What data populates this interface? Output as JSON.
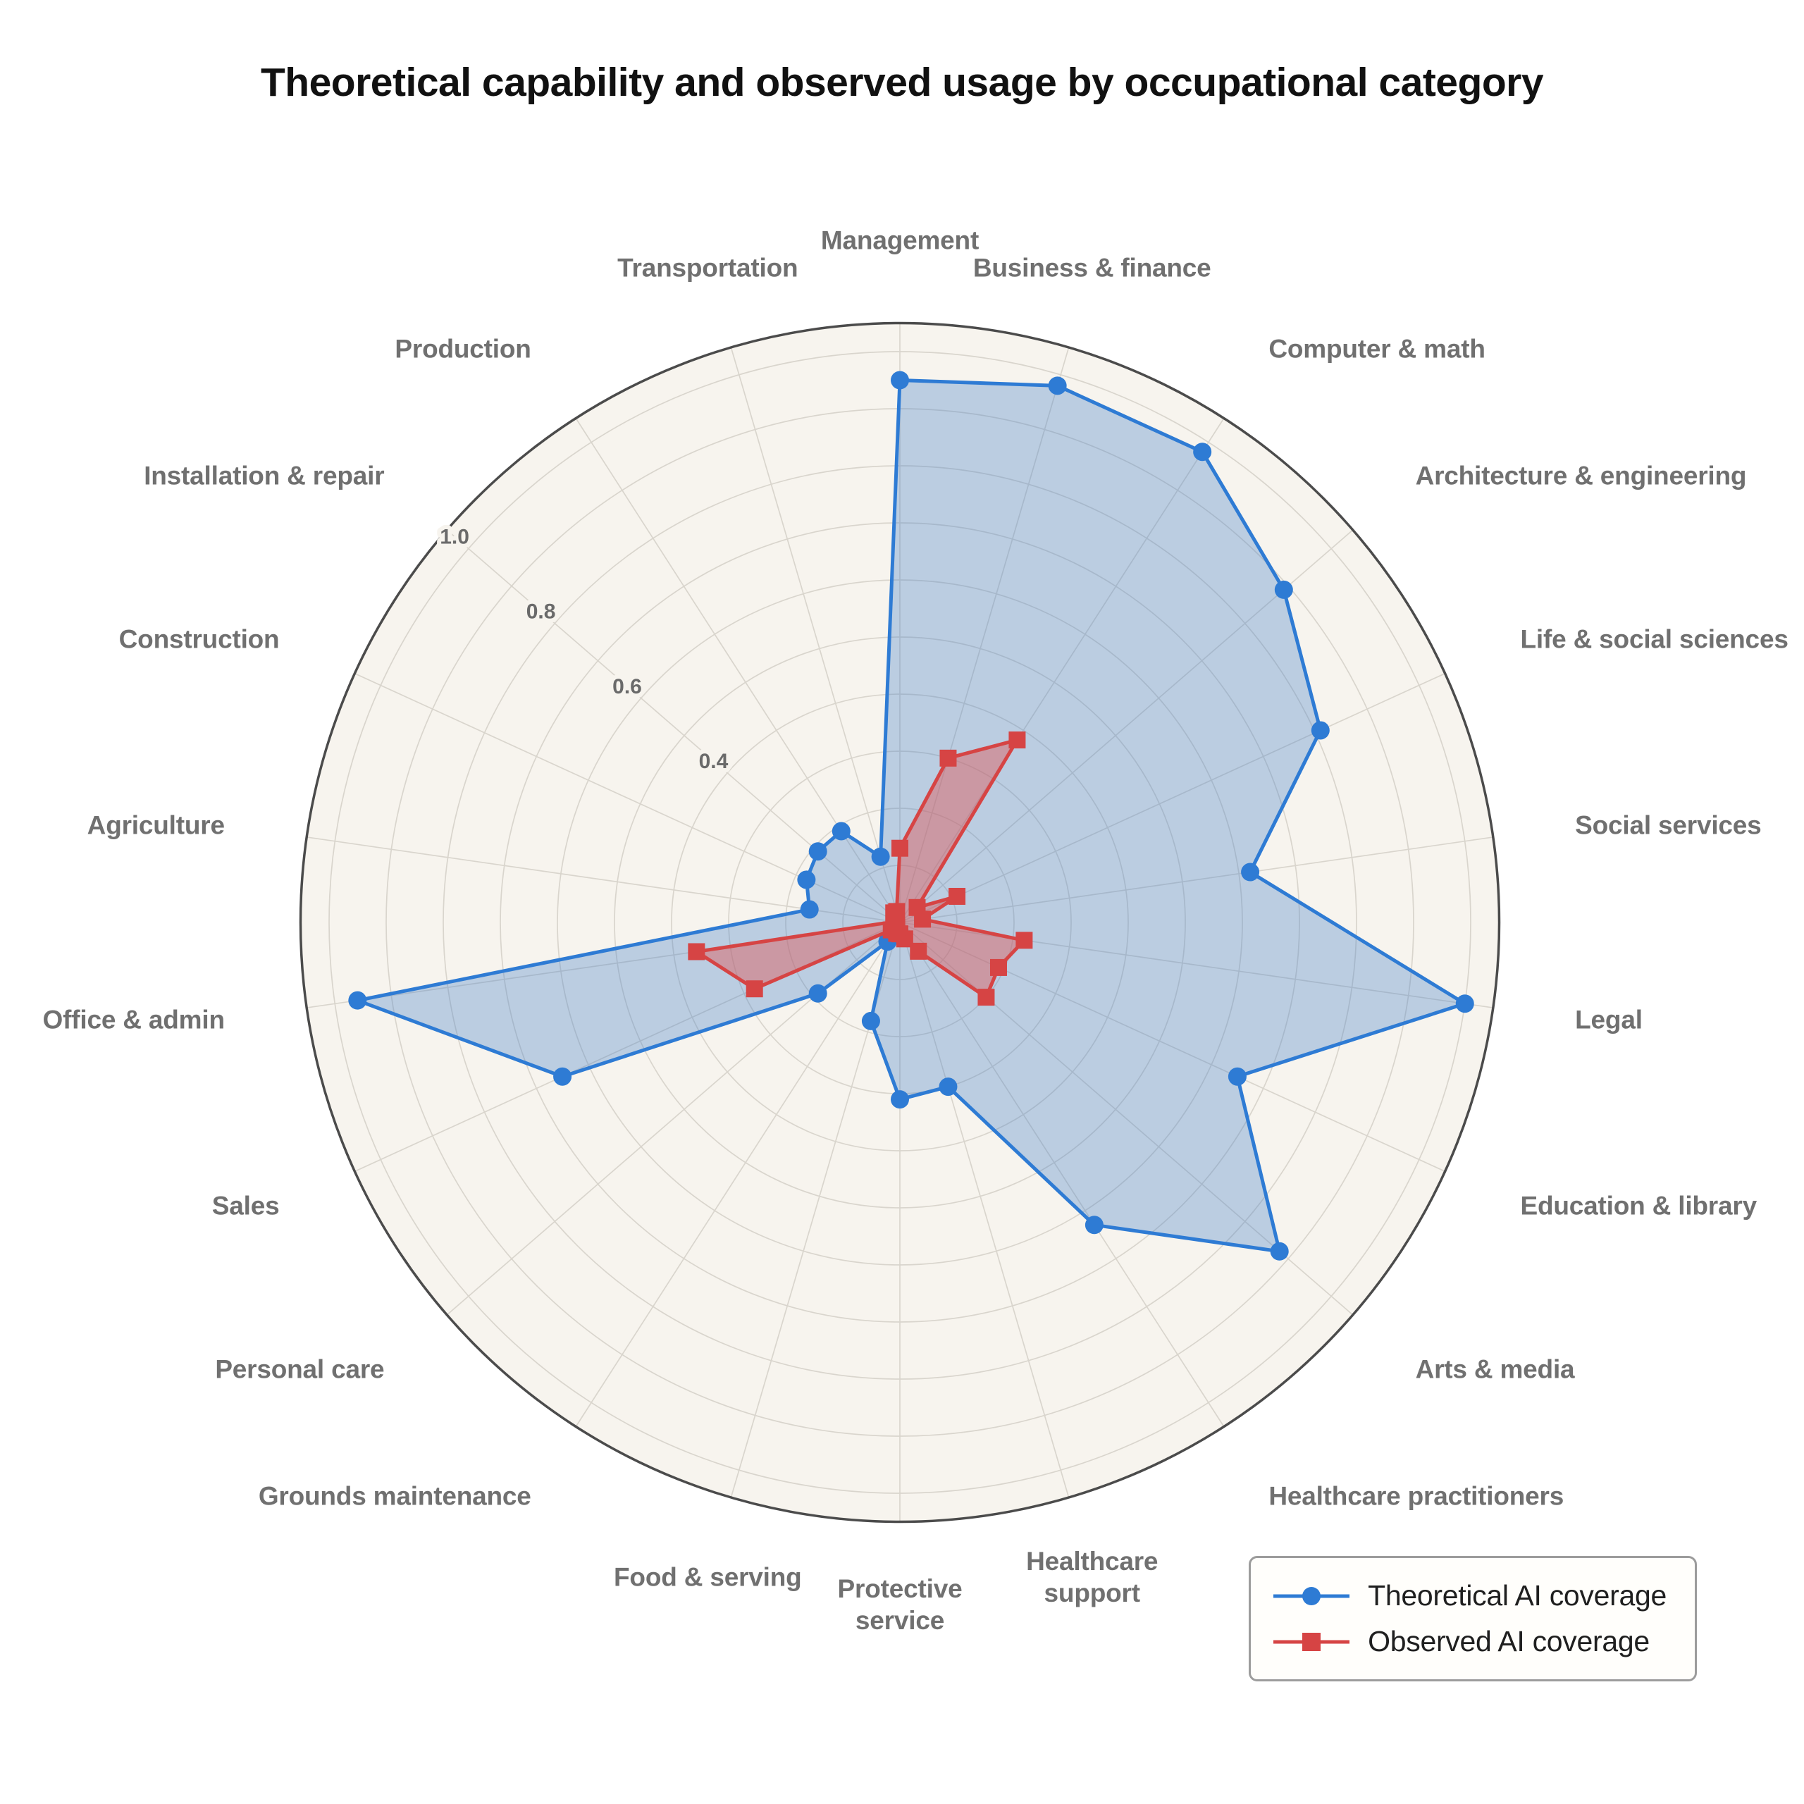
{
  "title": "Theoretical capability and observed usage by occupational category",
  "chart_data": {
    "type": "radar",
    "start_angle": "top",
    "direction": "clockwise",
    "grid": "on",
    "legend_position": "bottom-right",
    "categories": [
      "Management",
      "Business & finance",
      "Computer & math",
      "Architecture & engineering",
      "Life & social sciences",
      "Social services",
      "Legal",
      "Education & library",
      "Arts & media",
      "Healthcare practitioners",
      "Healthcare support",
      "Protective service",
      "Food & serving",
      "Grounds maintenance",
      "Personal care",
      "Sales",
      "Office & admin",
      "Agriculture",
      "Construction",
      "Installation & repair",
      "Production",
      "Transportation"
    ],
    "series": [
      {
        "name": "Theoretical AI coverage",
        "marker": "circle",
        "color": "#2e7bd4",
        "fill": "rgba(62,125,200,0.32)",
        "values": [
          0.95,
          0.98,
          0.98,
          0.89,
          0.81,
          0.62,
          1.0,
          0.65,
          0.88,
          0.63,
          0.3,
          0.31,
          0.18,
          0.04,
          0.19,
          0.65,
          0.96,
          0.16,
          0.18,
          0.19,
          0.19,
          0.12
        ]
      },
      {
        "name": "Observed AI coverage",
        "marker": "square",
        "color": "#d64444",
        "fill": "rgba(224,88,88,0.45)",
        "values": [
          0.13,
          0.3,
          0.38,
          0.04,
          0.11,
          0.04,
          0.22,
          0.19,
          0.2,
          0.06,
          0.03,
          0.02,
          0.02,
          0.01,
          0.02,
          0.28,
          0.36,
          0.01,
          0.01,
          0.01,
          0.02,
          0.02
        ]
      }
    ],
    "radial_axis": {
      "min": 0,
      "max": 1.05,
      "ring_step": 0.1,
      "tick_labels": [
        "0.4",
        "0.6",
        "0.8",
        "1.0"
      ],
      "tick_values": [
        0.4,
        0.6,
        0.8,
        1.0
      ],
      "tick_angle_deg": 310.9
    },
    "style": {
      "plot_bg": "#f7f4ee",
      "grid_color": "#d9d5cd",
      "boundary_color": "#4b4b4b",
      "category_label_color": "#707070"
    }
  }
}
